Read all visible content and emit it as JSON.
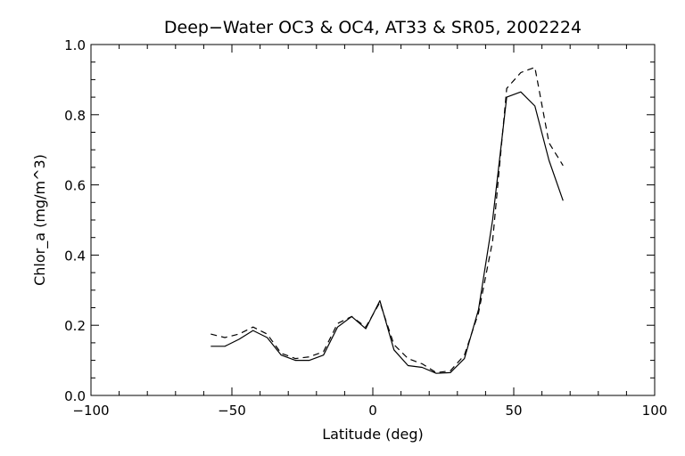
{
  "chart_data": {
    "type": "line",
    "title": "Deep−Water OC3 & OC4, AT33 & SR05, 2002224",
    "xlabel": "Latitude (deg)",
    "ylabel": "Chlor_a (mg/m^3)",
    "xlim": [
      -100,
      100
    ],
    "ylim": [
      0.0,
      1.0
    ],
    "xticks": [
      -100,
      -50,
      0,
      50,
      100
    ],
    "xtick_labels": [
      "−100",
      "−50",
      "0",
      "50",
      "100"
    ],
    "yticks": [
      0.0,
      0.2,
      0.4,
      0.6,
      0.8,
      1.0
    ],
    "ytick_labels": [
      "0.0",
      "0.2",
      "0.4",
      "0.6",
      "0.8",
      "1.0"
    ],
    "grid": false,
    "series": [
      {
        "style": "solid",
        "color": "#000000",
        "x": [
          -57.5,
          -52.5,
          -47.5,
          -42.5,
          -37.5,
          -32.5,
          -27.5,
          -22.5,
          -17.5,
          -12.5,
          -7.5,
          -2.5,
          2.5,
          7.5,
          12.5,
          17.5,
          22.5,
          27.5,
          32.5,
          37.5,
          42.5,
          47.5,
          52.5,
          57.5,
          62.5,
          67.5
        ],
        "y": [
          0.14,
          0.14,
          0.16,
          0.185,
          0.165,
          0.115,
          0.1,
          0.1,
          0.115,
          0.195,
          0.225,
          0.19,
          0.27,
          0.13,
          0.085,
          0.08,
          0.063,
          0.065,
          0.105,
          0.245,
          0.5,
          0.85,
          0.865,
          0.825,
          0.67,
          0.555
        ]
      },
      {
        "style": "dashed",
        "color": "#000000",
        "x": [
          -57.5,
          -52.5,
          -47.5,
          -42.5,
          -37.5,
          -32.5,
          -27.5,
          -22.5,
          -17.5,
          -12.5,
          -7.5,
          -2.5,
          2.5,
          7.5,
          12.5,
          17.5,
          22.5,
          27.5,
          32.5,
          37.5,
          42.5,
          47.5,
          52.5,
          57.5,
          62.5,
          67.5
        ],
        "y": [
          0.175,
          0.165,
          0.175,
          0.195,
          0.175,
          0.12,
          0.105,
          0.11,
          0.125,
          0.205,
          0.225,
          0.195,
          0.265,
          0.145,
          0.105,
          0.09,
          0.065,
          0.07,
          0.115,
          0.235,
          0.44,
          0.875,
          0.92,
          0.935,
          0.72,
          0.655
        ]
      }
    ]
  }
}
